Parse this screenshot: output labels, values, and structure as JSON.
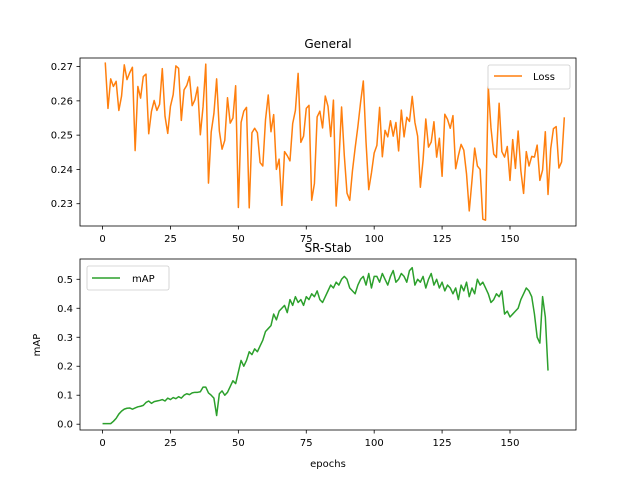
{
  "colors": {
    "loss": "#ff7f0e",
    "map": "#2ca02c"
  },
  "chart_data": [
    {
      "type": "line",
      "title": "General",
      "xlabel": "",
      "ylabel": "",
      "xlim": [
        -8.3,
        174.3
      ],
      "ylim": [
        0.2235,
        0.2725
      ],
      "xticks": [
        0,
        25,
        50,
        75,
        100,
        125,
        150
      ],
      "yticks": [
        0.23,
        0.24,
        0.25,
        0.26,
        0.27
      ],
      "ytick_labels": [
        "0.23",
        "0.24",
        "0.25",
        "0.26",
        "0.27"
      ],
      "legend": "top-right",
      "grid": false,
      "series": [
        {
          "name": "Loss",
          "color": "#ff7f0e",
          "x_start": 1,
          "values": [
            0.2712,
            0.2578,
            0.2664,
            0.2642,
            0.2657,
            0.2572,
            0.2614,
            0.2705,
            0.2662,
            0.2682,
            0.2698,
            0.2455,
            0.2642,
            0.2608,
            0.2671,
            0.2678,
            0.2504,
            0.2569,
            0.2601,
            0.2572,
            0.259,
            0.2694,
            0.2555,
            0.2505,
            0.2584,
            0.2618,
            0.2702,
            0.2695,
            0.2543,
            0.2632,
            0.2645,
            0.2671,
            0.2586,
            0.2603,
            0.264,
            0.2501,
            0.2583,
            0.2707,
            0.236,
            0.2509,
            0.2563,
            0.2664,
            0.2512,
            0.2459,
            0.2485,
            0.2609,
            0.2535,
            0.255,
            0.2644,
            0.2289,
            0.2537,
            0.257,
            0.2581,
            0.2288,
            0.2507,
            0.252,
            0.2507,
            0.242,
            0.241,
            0.2545,
            0.2617,
            0.251,
            0.256,
            0.24,
            0.243,
            0.2295,
            0.2452,
            0.244,
            0.2425,
            0.2534,
            0.2572,
            0.268,
            0.2479,
            0.2497,
            0.2578,
            0.2587,
            0.231,
            0.2359,
            0.2553,
            0.257,
            0.2521,
            0.2614,
            0.2584,
            0.2496,
            0.2602,
            0.2293,
            0.2422,
            0.2582,
            0.2441,
            0.2331,
            0.231,
            0.2396,
            0.2463,
            0.2525,
            0.2596,
            0.2658,
            0.248,
            0.2341,
            0.239,
            0.2448,
            0.247,
            0.2581,
            0.2437,
            0.2514,
            0.2495,
            0.2542,
            0.2497,
            0.2537,
            0.2454,
            0.2573,
            0.2495,
            0.2552,
            0.254,
            0.2613,
            0.2537,
            0.2497,
            0.2348,
            0.2427,
            0.2547,
            0.2465,
            0.248,
            0.2539,
            0.2436,
            0.2491,
            0.238,
            0.2561,
            0.2546,
            0.252,
            0.2557,
            0.2402,
            0.244,
            0.2473,
            0.2456,
            0.2387,
            0.2279,
            0.2367,
            0.2462,
            0.241,
            0.24,
            0.2255,
            0.2252,
            0.2642,
            0.2521,
            0.2445,
            0.2435,
            0.2593,
            0.2452,
            0.2436,
            0.2467,
            0.2368,
            0.2487,
            0.2403,
            0.2512,
            0.2396,
            0.233,
            0.2452,
            0.241,
            0.2438,
            0.2436,
            0.2471,
            0.2368,
            0.2398,
            0.251,
            0.2327,
            0.2461,
            0.2519,
            0.2525,
            0.2404,
            0.2422,
            0.2552
          ]
        }
      ]
    },
    {
      "type": "line",
      "title": "SR-Stab",
      "xlabel": "epochs",
      "ylabel": "mAP",
      "xlim": [
        -8.3,
        174.3
      ],
      "ylim": [
        -0.02,
        0.57
      ],
      "xticks": [
        0,
        25,
        50,
        75,
        100,
        125,
        150
      ],
      "yticks": [
        0.0,
        0.1,
        0.2,
        0.3,
        0.4,
        0.5
      ],
      "ytick_labels": [
        "0.0",
        "0.1",
        "0.2",
        "0.3",
        "0.4",
        "0.5"
      ],
      "legend": "top-left",
      "grid": false,
      "series": [
        {
          "name": "mAP",
          "color": "#2ca02c",
          "x_start": 0,
          "values": [
            0.002,
            0.002,
            0.002,
            0.002,
            0.01,
            0.02,
            0.035,
            0.045,
            0.052,
            0.055,
            0.056,
            0.052,
            0.056,
            0.06,
            0.062,
            0.065,
            0.075,
            0.08,
            0.072,
            0.078,
            0.08,
            0.082,
            0.085,
            0.08,
            0.09,
            0.085,
            0.092,
            0.088,
            0.095,
            0.09,
            0.1,
            0.105,
            0.102,
            0.108,
            0.11,
            0.11,
            0.112,
            0.128,
            0.128,
            0.108,
            0.1,
            0.09,
            0.03,
            0.105,
            0.115,
            0.1,
            0.11,
            0.13,
            0.15,
            0.14,
            0.18,
            0.22,
            0.2,
            0.22,
            0.25,
            0.24,
            0.26,
            0.25,
            0.27,
            0.29,
            0.32,
            0.33,
            0.34,
            0.38,
            0.36,
            0.39,
            0.4,
            0.41,
            0.385,
            0.43,
            0.41,
            0.44,
            0.42,
            0.43,
            0.41,
            0.44,
            0.43,
            0.45,
            0.44,
            0.46,
            0.43,
            0.42,
            0.44,
            0.46,
            0.48,
            0.47,
            0.49,
            0.48,
            0.5,
            0.51,
            0.5,
            0.47,
            0.46,
            0.45,
            0.48,
            0.5,
            0.51,
            0.48,
            0.52,
            0.47,
            0.51,
            0.51,
            0.49,
            0.52,
            0.5,
            0.48,
            0.51,
            0.53,
            0.49,
            0.5,
            0.52,
            0.51,
            0.49,
            0.53,
            0.54,
            0.48,
            0.5,
            0.49,
            0.51,
            0.47,
            0.5,
            0.52,
            0.48,
            0.5,
            0.47,
            0.49,
            0.46,
            0.48,
            0.47,
            0.45,
            0.47,
            0.43,
            0.48,
            0.46,
            0.49,
            0.44,
            0.47,
            0.45,
            0.5,
            0.48,
            0.49,
            0.47,
            0.45,
            0.42,
            0.43,
            0.45,
            0.44,
            0.46,
            0.38,
            0.39,
            0.37,
            0.38,
            0.39,
            0.4,
            0.43,
            0.45,
            0.47,
            0.46,
            0.44,
            0.38,
            0.3,
            0.28,
            0.44,
            0.37,
            0.185
          ]
        }
      ]
    }
  ]
}
